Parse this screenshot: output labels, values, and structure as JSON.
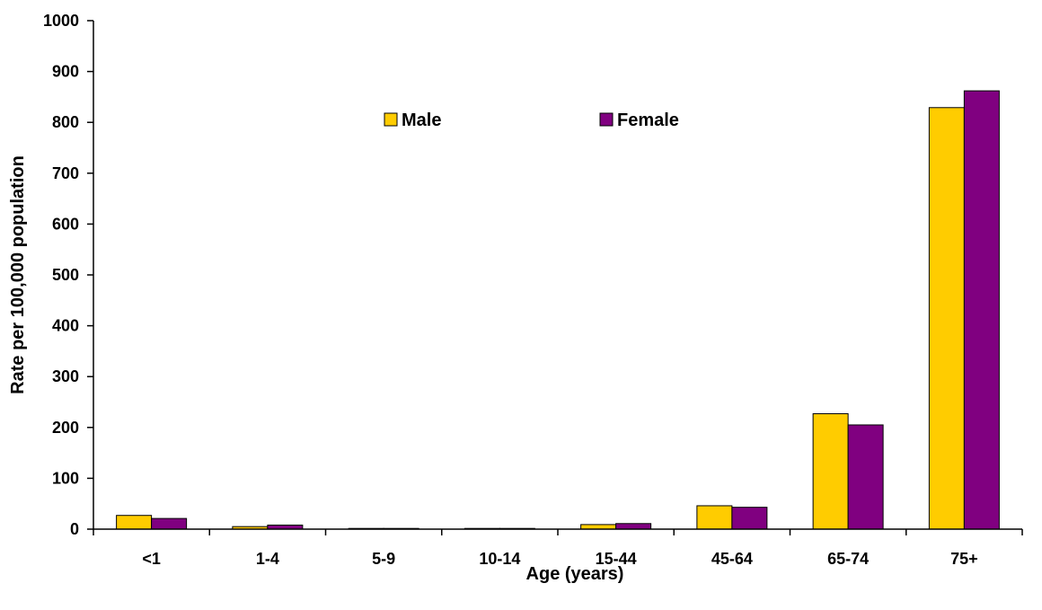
{
  "chart_data": {
    "type": "bar",
    "title": "",
    "xlabel": "Age (years)",
    "ylabel": "Rate per 100,000 population",
    "categories": [
      "<1",
      "1-4",
      "5-9",
      "10-14",
      "15-44",
      "45-64",
      "65-74",
      "75+"
    ],
    "series": [
      {
        "name": "Male",
        "color": "#FFCC00",
        "values": [
          27,
          5,
          1,
          1,
          9,
          46,
          227,
          829
        ]
      },
      {
        "name": "Female",
        "color": "#800080",
        "values": [
          21,
          8,
          1,
          1,
          11,
          43,
          205,
          862
        ]
      }
    ],
    "ylim": [
      0,
      1000
    ],
    "yticks": [
      0,
      100,
      200,
      300,
      400,
      500,
      600,
      700,
      800,
      900,
      1000
    ],
    "grid": false,
    "legend_position": "top"
  }
}
